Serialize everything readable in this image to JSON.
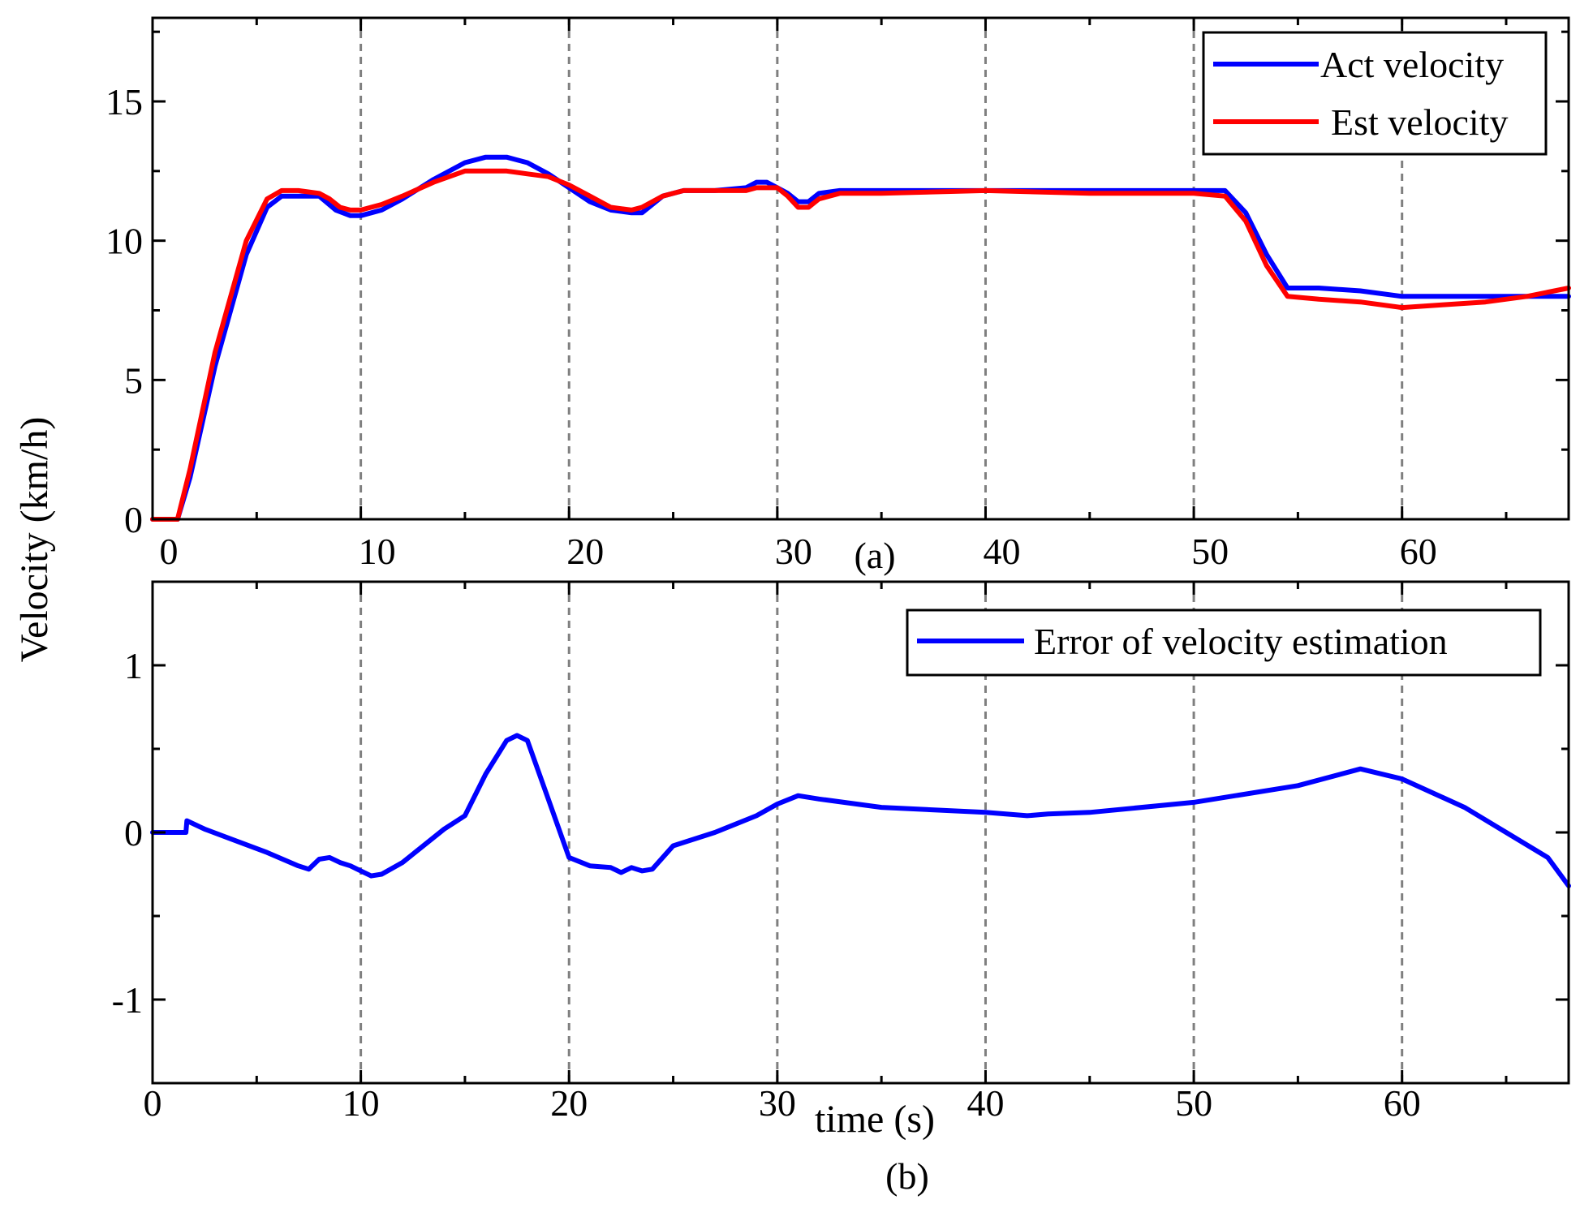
{
  "colors": {
    "act": "#0000ff",
    "est": "#ff0000",
    "err": "#0000ff",
    "grid": "#7f7f7f",
    "axis": "#000000"
  },
  "chart_data": [
    {
      "type": "line",
      "panel": "(a)",
      "ylabel": "Velocity (km/h)",
      "xlabel": "",
      "xlim": [
        0,
        68
      ],
      "ylim": [
        0,
        18
      ],
      "xticks": [
        0,
        10,
        20,
        30,
        40,
        50,
        60
      ],
      "yticks": [
        0,
        5,
        10,
        15
      ],
      "xtick_labels": [
        "0",
        "10",
        "20",
        "30",
        "40",
        "50",
        "60"
      ],
      "ytick_labels": [
        "0",
        "5",
        "10",
        "15"
      ],
      "grid": "vertical dashed at x ticks",
      "legend": "top-right",
      "series": [
        {
          "name": "Act velocity",
          "color": "#0000ff",
          "x": [
            0,
            1.2,
            1.8,
            3,
            4.5,
            5.5,
            6.2,
            7,
            8,
            8.8,
            9.5,
            10,
            11,
            12,
            13.5,
            15,
            16,
            17,
            18,
            19,
            20,
            21,
            22,
            23,
            23.5,
            24.5,
            25.5,
            27,
            28.5,
            29,
            29.5,
            30,
            30.5,
            31,
            31.5,
            32,
            33,
            35,
            40,
            45,
            50,
            51.5,
            52.5,
            53.5,
            54.5,
            56,
            58,
            60,
            62,
            64,
            66,
            68
          ],
          "y": [
            0,
            0,
            1.5,
            5.5,
            9.5,
            11.2,
            11.6,
            11.6,
            11.6,
            11.1,
            10.9,
            10.9,
            11.1,
            11.5,
            12.2,
            12.8,
            13,
            13,
            12.8,
            12.4,
            11.9,
            11.4,
            11.1,
            11,
            11,
            11.6,
            11.8,
            11.8,
            11.9,
            12.1,
            12.1,
            11.9,
            11.7,
            11.4,
            11.4,
            11.7,
            11.8,
            11.8,
            11.8,
            11.8,
            11.8,
            11.8,
            11,
            9.5,
            8.3,
            8.3,
            8.2,
            8,
            8,
            8,
            8,
            8
          ]
        },
        {
          "name": "Est velocity",
          "color": "#ff0000",
          "x": [
            0,
            1.2,
            1.8,
            3,
            4.5,
            5.5,
            6.2,
            7,
            8,
            8.5,
            9,
            9.5,
            10,
            11,
            12,
            13.5,
            15,
            16,
            17,
            18,
            19,
            20,
            21,
            22,
            23,
            23.5,
            24.5,
            25.5,
            27,
            28,
            28.5,
            29,
            29.5,
            30,
            30.5,
            31,
            31.5,
            32,
            33,
            35,
            40,
            45,
            50,
            51.5,
            52.5,
            53.5,
            54.5,
            56,
            58,
            60,
            62,
            64,
            66,
            68
          ],
          "y": [
            0,
            0,
            1.8,
            6,
            10,
            11.5,
            11.8,
            11.8,
            11.7,
            11.5,
            11.2,
            11.1,
            11.1,
            11.3,
            11.6,
            12.1,
            12.5,
            12.5,
            12.5,
            12.4,
            12.3,
            12,
            11.6,
            11.2,
            11.1,
            11.2,
            11.6,
            11.8,
            11.8,
            11.8,
            11.8,
            11.9,
            11.9,
            11.9,
            11.6,
            11.2,
            11.2,
            11.5,
            11.7,
            11.7,
            11.8,
            11.7,
            11.7,
            11.6,
            10.7,
            9.1,
            8.0,
            7.9,
            7.8,
            7.6,
            7.7,
            7.8,
            8,
            8.3
          ]
        }
      ]
    },
    {
      "type": "line",
      "panel": "(b)",
      "xlabel": "time (s)",
      "ylabel": "",
      "xlim": [
        0,
        68
      ],
      "ylim": [
        -1.5,
        1.5
      ],
      "xticks": [
        0,
        10,
        20,
        30,
        40,
        50,
        60
      ],
      "yticks": [
        -1,
        0,
        1
      ],
      "xtick_labels": [
        "0",
        "10",
        "20",
        "30",
        "40",
        "50",
        "60"
      ],
      "ytick_labels": [
        "-1",
        "0",
        "1"
      ],
      "grid": "vertical dashed at x ticks",
      "legend": "top-right",
      "series": [
        {
          "name": "Error of velocity estimation",
          "color": "#0000ff",
          "x": [
            0,
            1.6,
            1.65,
            2.5,
            4,
            5.5,
            7,
            7.5,
            8,
            8.5,
            9,
            9.5,
            10,
            10.5,
            11,
            12,
            13,
            14,
            15,
            16,
            17,
            17.5,
            18,
            19,
            20,
            21,
            22,
            22.5,
            23,
            23.5,
            24,
            25,
            27,
            29,
            30,
            31,
            32,
            35,
            40,
            42,
            43,
            45,
            50,
            55,
            58,
            60,
            63,
            65,
            67,
            68
          ],
          "y": [
            0,
            0,
            0.07,
            0.02,
            -0.05,
            -0.12,
            -0.2,
            -0.22,
            -0.16,
            -0.15,
            -0.18,
            -0.2,
            -0.23,
            -0.26,
            -0.25,
            -0.18,
            -0.08,
            0.02,
            0.1,
            0.35,
            0.55,
            0.58,
            0.55,
            0.2,
            -0.15,
            -0.2,
            -0.21,
            -0.24,
            -0.21,
            -0.23,
            -0.22,
            -0.08,
            0,
            0.1,
            0.17,
            0.22,
            0.2,
            0.15,
            0.12,
            0.1,
            0.11,
            0.12,
            0.18,
            0.28,
            0.38,
            0.32,
            0.15,
            0,
            -0.15,
            -0.32
          ]
        }
      ]
    }
  ],
  "panels": {
    "a": {
      "label": "(a)",
      "legend": [
        "Act velocity",
        "Est velocity"
      ]
    },
    "b": {
      "label": "(b)",
      "legend": [
        "Error of velocity estimation"
      ]
    }
  }
}
